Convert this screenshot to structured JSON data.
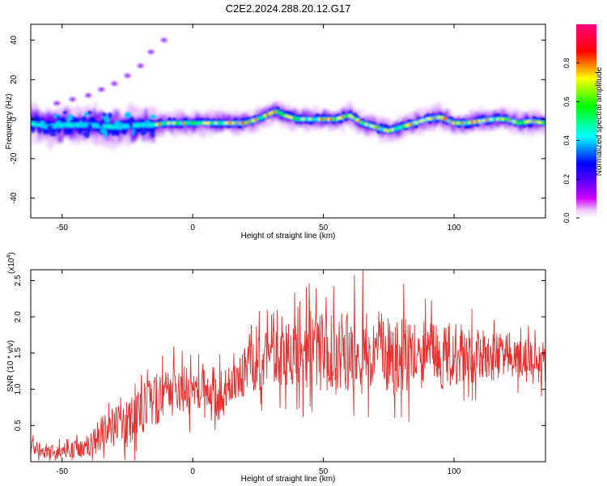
{
  "figure_title": "C2E2.2024.288.20.12.G17",
  "chart_data": [
    {
      "type": "heatmap",
      "title": "C2E2.2024.288.20.12.G17",
      "xlabel": "Height of straight line (km)",
      "ylabel": "Frequency (Hz)",
      "xlim": [
        -62,
        135
      ],
      "ylim": [
        -50,
        48
      ],
      "xticks": [
        -50,
        0,
        50,
        100
      ],
      "yticks": [
        -40,
        -20,
        0,
        20,
        40
      ],
      "grid": false,
      "colorbar": {
        "label": "Normalized spectral amplitude",
        "range": [
          0.0,
          1.0
        ],
        "ticks": [
          "0.0",
          "0.2",
          "0.4",
          "0.6",
          "0.8"
        ],
        "colormap": [
          "#ffffff",
          "#ff00ff",
          "#6600ff",
          "#0000ff",
          "#00ffff",
          "#00ff00",
          "#ffff00",
          "#ff0000",
          "#ff0080"
        ]
      },
      "ridge_center_hz": {
        "height_km": [
          -62,
          -55,
          -50,
          -40,
          -30,
          -20,
          -15,
          -10,
          0,
          10,
          20,
          25,
          30,
          32,
          35,
          40,
          45,
          50,
          55,
          60,
          65,
          70,
          75,
          80,
          85,
          90,
          95,
          100,
          105,
          110,
          115,
          120,
          125,
          130,
          135
        ],
        "frequency_hz": [
          -2,
          -4,
          -3,
          -3,
          -4,
          -3,
          -3,
          -2,
          -2,
          -2,
          -2,
          0,
          3,
          4,
          2,
          0,
          0,
          0,
          0,
          2,
          -2,
          -4,
          -6,
          -4,
          -2,
          0,
          1,
          -2,
          -2,
          -1,
          0,
          0,
          -2,
          -1,
          -2
        ]
      },
      "side_branch_hz": {
        "height_km": [
          -52,
          -46,
          -40,
          -35,
          -30,
          -25,
          -20,
          -16,
          -11
        ],
        "frequency_hz": [
          8,
          10,
          12,
          15,
          18,
          22,
          27,
          34,
          40
        ]
      }
    },
    {
      "type": "line",
      "title": "",
      "xlabel": "Height of straight line (km)",
      "ylabel": "SNR (10 * v/v)",
      "y_multiplier_label": "(x10",
      "y_multiplier_exponent": "4",
      "y_multiplier_close": ")",
      "xlim": [
        -62,
        135
      ],
      "ylim": [
        0,
        2.65
      ],
      "xticks": [
        -50,
        0,
        50,
        100
      ],
      "yticks": [
        0.5,
        1.0,
        1.5,
        2.0,
        2.5
      ],
      "grid": false,
      "series": [
        {
          "color": "#e83030",
          "envelope_x": [
            -62,
            -50,
            -40,
            -35,
            -30,
            -25,
            -20,
            -18,
            -10,
            -5,
            0,
            5,
            10,
            15,
            20,
            25,
            30,
            35,
            40,
            45,
            50,
            55,
            60,
            65,
            70,
            75,
            80,
            85,
            90,
            95,
            100,
            105,
            110,
            115,
            120,
            125,
            130,
            135
          ],
          "envelope_mean": [
            0.18,
            0.14,
            0.22,
            0.38,
            0.45,
            0.5,
            0.8,
            0.75,
            0.95,
            1.0,
            0.95,
            1.1,
            0.9,
            1.1,
            1.25,
            1.35,
            1.5,
            1.45,
            1.5,
            1.55,
            1.5,
            1.45,
            1.55,
            1.5,
            1.55,
            1.45,
            1.5,
            1.45,
            1.5,
            1.45,
            1.5,
            1.5,
            1.45,
            1.45,
            1.5,
            1.45,
            1.35,
            1.4
          ],
          "envelope_spread": [
            0.12,
            0.1,
            0.15,
            0.25,
            0.3,
            0.35,
            0.45,
            0.4,
            0.35,
            0.35,
            0.3,
            0.3,
            0.35,
            0.3,
            0.35,
            0.4,
            0.4,
            0.45,
            0.5,
            0.55,
            0.55,
            0.55,
            0.6,
            0.6,
            0.55,
            0.55,
            0.55,
            0.5,
            0.45,
            0.45,
            0.45,
            0.4,
            0.4,
            0.35,
            0.3,
            0.3,
            0.3,
            0.3
          ],
          "peak_x": 65,
          "peak_y": 2.65
        }
      ]
    }
  ]
}
